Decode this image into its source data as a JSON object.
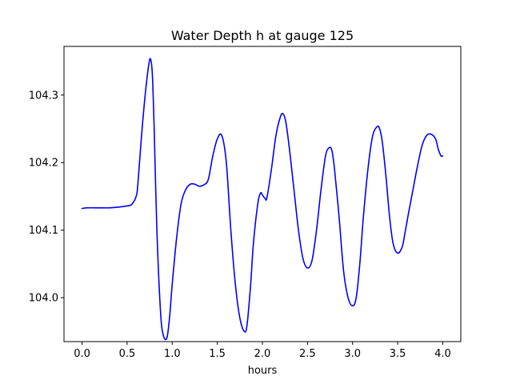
{
  "chart_data": {
    "type": "line",
    "title": "Water Depth h at gauge 125",
    "xlabel": "hours",
    "ylabel": "",
    "xlim": [
      -0.2,
      4.2
    ],
    "ylim": [
      103.935,
      104.372
    ],
    "xticks": [
      0.0,
      0.5,
      1.0,
      1.5,
      2.0,
      2.5,
      3.0,
      3.5,
      4.0
    ],
    "xtick_labels": [
      "0.0",
      "0.5",
      "1.0",
      "1.5",
      "2.0",
      "2.5",
      "3.0",
      "3.5",
      "4.0"
    ],
    "yticks": [
      104.0,
      104.1,
      104.2,
      104.3
    ],
    "ytick_labels": [
      "104.0",
      "104.1",
      "104.2",
      "104.3"
    ],
    "grid": false,
    "series": [
      {
        "color": "#0000ff",
        "x": [
          0.0,
          0.05,
          0.2,
          0.3,
          0.4,
          0.5,
          0.55,
          0.6,
          0.62,
          0.66,
          0.7,
          0.74,
          0.76,
          0.78,
          0.8,
          0.83,
          0.87,
          0.9,
          0.94,
          0.97,
          1.0,
          1.05,
          1.1,
          1.15,
          1.2,
          1.25,
          1.3,
          1.35,
          1.4,
          1.45,
          1.5,
          1.55,
          1.6,
          1.65,
          1.7,
          1.75,
          1.8,
          1.83,
          1.87,
          1.9,
          1.95,
          1.98,
          2.0,
          2.03,
          2.05,
          2.1,
          2.15,
          2.2,
          2.23,
          2.26,
          2.3,
          2.35,
          2.4,
          2.45,
          2.5,
          2.55,
          2.6,
          2.65,
          2.7,
          2.74,
          2.77,
          2.8,
          2.85,
          2.9,
          2.95,
          3.0,
          3.04,
          3.08,
          3.12,
          3.17,
          3.22,
          3.27,
          3.3,
          3.33,
          3.37,
          3.41,
          3.45,
          3.5,
          3.55,
          3.58,
          3.62,
          3.67,
          3.72,
          3.77,
          3.82,
          3.87,
          3.92,
          3.95,
          3.98,
          4.0
        ],
        "y": [
          104.132,
          104.133,
          104.133,
          104.133,
          104.134,
          104.136,
          104.138,
          104.15,
          104.17,
          104.24,
          104.3,
          104.345,
          104.353,
          104.33,
          104.25,
          104.1,
          103.98,
          103.945,
          103.94,
          103.97,
          104.02,
          104.09,
          104.14,
          104.16,
          104.168,
          104.168,
          104.165,
          104.167,
          104.175,
          104.21,
          104.235,
          104.24,
          104.2,
          104.1,
          104.02,
          103.97,
          103.95,
          103.96,
          104.02,
          104.08,
          104.14,
          104.155,
          104.152,
          104.147,
          104.148,
          104.19,
          104.24,
          104.268,
          104.272,
          104.26,
          104.22,
          104.16,
          104.1,
          104.058,
          104.044,
          104.055,
          104.1,
          104.16,
          104.21,
          104.222,
          104.218,
          104.19,
          104.12,
          104.04,
          104.0,
          103.988,
          104.0,
          104.05,
          104.12,
          104.19,
          104.238,
          104.253,
          104.25,
          104.23,
          104.18,
          104.12,
          104.08,
          104.066,
          104.075,
          104.095,
          104.125,
          104.16,
          104.195,
          104.225,
          104.24,
          104.242,
          104.235,
          104.22,
          104.21,
          104.21
        ]
      }
    ]
  }
}
